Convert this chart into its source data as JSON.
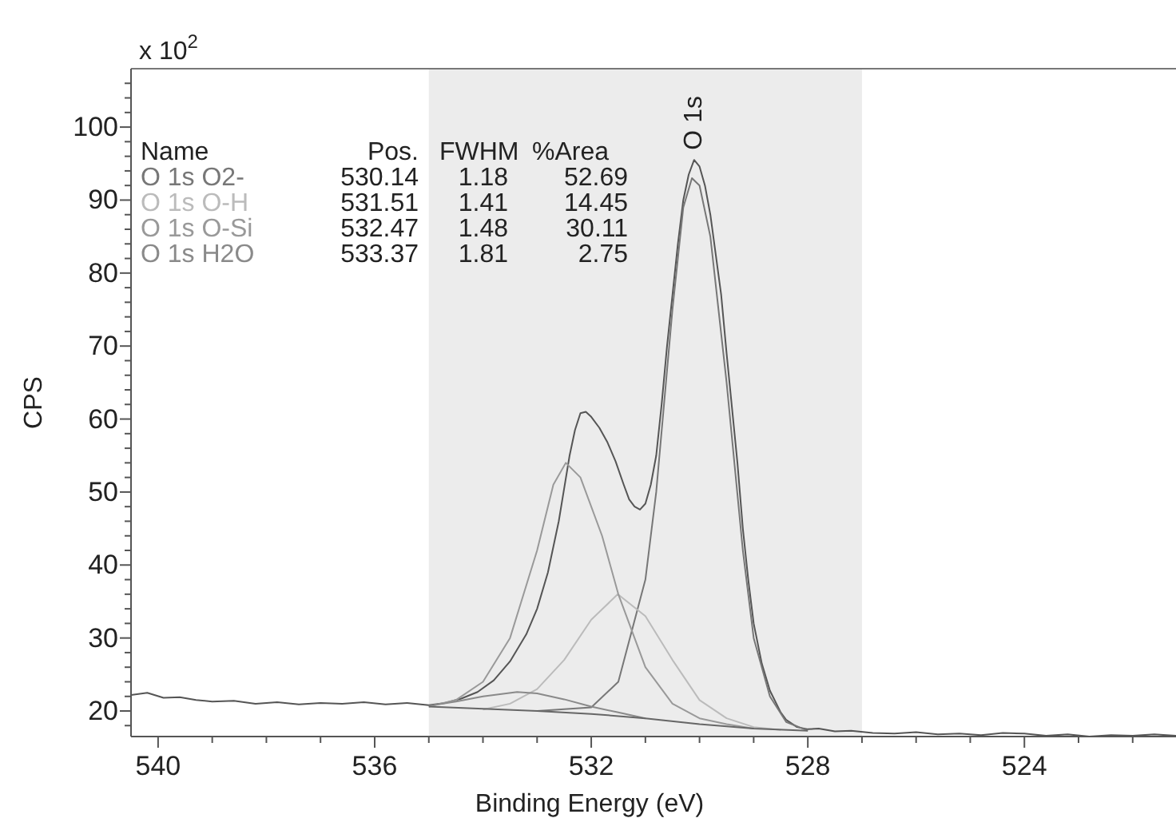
{
  "chart_data": {
    "type": "line",
    "xlabel": "Binding Energy (eV)",
    "ylabel": "CPS",
    "xlim": [
      540.5,
      521.2
    ],
    "ylim": [
      16.5,
      108
    ],
    "xticks": [
      540,
      {
        "value": 539,
        "label": null
      },
      {
        "value": 538,
        "label": null
      },
      {
        "value": 537,
        "label": null
      },
      536,
      {
        "value": 535,
        "label": null
      },
      {
        "value": 534,
        "label": null
      },
      {
        "value": 533,
        "label": null
      },
      532,
      {
        "value": 531,
        "label": null
      },
      {
        "value": 530,
        "label": null
      },
      {
        "value": 529,
        "label": null
      },
      528,
      {
        "value": 527,
        "label": null
      },
      {
        "value": 526,
        "label": null
      },
      {
        "value": 525,
        "label": null
      },
      524,
      {
        "value": 523,
        "label": null
      },
      {
        "value": 522,
        "label": null
      }
    ],
    "yticks": [
      {
        "value": 18,
        "label": null
      },
      20,
      {
        "value": 22,
        "label": null
      },
      {
        "value": 24,
        "label": null
      },
      {
        "value": 26,
        "label": null
      },
      {
        "value": 28,
        "label": null
      },
      30,
      {
        "value": 32,
        "label": null
      },
      {
        "value": 34,
        "label": null
      },
      {
        "value": 36,
        "label": null
      },
      {
        "value": 38,
        "label": null
      },
      40,
      {
        "value": 42,
        "label": null
      },
      {
        "value": 44,
        "label": null
      },
      {
        "value": 46,
        "label": null
      },
      {
        "value": 48,
        "label": null
      },
      50,
      {
        "value": 52,
        "label": null
      },
      {
        "value": 54,
        "label": null
      },
      {
        "value": 56,
        "label": null
      },
      {
        "value": 58,
        "label": null
      },
      60,
      {
        "value": 62,
        "label": null
      },
      {
        "value": 64,
        "label": null
      },
      {
        "value": 66,
        "label": null
      },
      {
        "value": 68,
        "label": null
      },
      70,
      {
        "value": 72,
        "label": null
      },
      {
        "value": 74,
        "label": null
      },
      {
        "value": 76,
        "label": null
      },
      {
        "value": 78,
        "label": null
      },
      80,
      {
        "value": 82,
        "label": null
      },
      {
        "value": 84,
        "label": null
      },
      {
        "value": 86,
        "label": null
      },
      {
        "value": 88,
        "label": null
      },
      90,
      {
        "value": 92,
        "label": null
      },
      {
        "value": 94,
        "label": null
      },
      {
        "value": 96,
        "label": null
      },
      {
        "value": 98,
        "label": null
      },
      100,
      {
        "value": 102,
        "label": null
      },
      {
        "value": 104,
        "label": null
      },
      {
        "value": 106,
        "label": null
      }
    ],
    "grid": false,
    "legend": "top left",
    "marker": "none",
    "line_style": "solid",
    "bands": [
      {
        "axis": "x",
        "from": 535,
        "to": 527,
        "color": "#ececec"
      }
    ],
    "annotations": [
      "x 10$^{2}$",
      {
        "text": "O 1s",
        "x": 530.14,
        "y": 96
      },
      "Name",
      "Pos.",
      "FWHM",
      "%Area",
      "530.14",
      "1.18",
      "52.69",
      "531.51",
      "1.41",
      "14.45",
      "532.47",
      "1.48",
      "30.11",
      "533.37",
      "1.81",
      "2.75"
    ],
    "series": [
      {
        "color": "#555555",
        "x": [
          540.5,
          540.2,
          539.9,
          539.6,
          539.3,
          539,
          538.6,
          538.2,
          537.8,
          537.4,
          537,
          536.6,
          536.2,
          535.8,
          535.4,
          535,
          534.7,
          534.4,
          534.1,
          533.8,
          533.5,
          533.2,
          533,
          532.8,
          532.6,
          532.5,
          532.4,
          532.3,
          532.2,
          532.1,
          532,
          531.85,
          531.7,
          531.55,
          531.4,
          531.3,
          531.2,
          531.1,
          531,
          530.9,
          530.8,
          530.7,
          530.6,
          530.5,
          530.4,
          530.3,
          530.2,
          530.1,
          530,
          529.9,
          529.8,
          529.6,
          529.5,
          529.3,
          529.2,
          529.1,
          529,
          528.85,
          528.7,
          528.5,
          528.4,
          528.2,
          528,
          527.8,
          527.5,
          527.2,
          526.8,
          526.4,
          526,
          525.6,
          525.2,
          524.8,
          524.4,
          524,
          523.6,
          523.2,
          522.8,
          522.4,
          522,
          521.6,
          521.2
        ],
        "values": [
          22.2,
          22.5,
          21.8,
          21.9,
          21.5,
          21.3,
          21.4,
          21,
          21.2,
          20.9,
          21.1,
          21,
          21.2,
          20.9,
          21.1,
          20.8,
          21.1,
          21.7,
          22.6,
          24.2,
          26.8,
          30.5,
          34,
          39,
          46,
          50.5,
          55,
          58.5,
          60.8,
          61,
          60.3,
          58.8,
          56.8,
          54.2,
          51,
          49,
          48,
          47.6,
          48.4,
          51,
          55,
          62,
          70,
          77,
          84,
          90,
          93.5,
          95.5,
          94.6,
          92,
          88,
          77,
          69,
          54,
          45,
          38,
          32,
          26.5,
          22.8,
          19.8,
          18.8,
          17.8,
          17.5,
          17.6,
          17.2,
          17.3,
          17,
          16.9,
          17.1,
          16.8,
          16.9,
          16.7,
          17,
          16.9,
          16.6,
          16.8,
          16.5,
          16.7,
          16.6,
          16.8,
          16.6
        ]
      },
      {
        "name": "O 1s O2-",
        "color": "#777777",
        "x": [
          533,
          532,
          531.5,
          531,
          530.8,
          530.5,
          530.3,
          530.14,
          530,
          529.8,
          529.5,
          529.2,
          529,
          528.7,
          528.4,
          528
        ],
        "values": [
          20,
          20.5,
          24,
          38,
          50,
          75,
          89,
          93,
          92,
          85,
          65,
          42,
          30,
          22,
          18.5,
          17.3
        ]
      },
      {
        "name": "O 1s O-H",
        "color": "#bbbbbb",
        "x": [
          534,
          533.5,
          533,
          532.5,
          532,
          531.51,
          531,
          530.5,
          530,
          529.5,
          529,
          528.5
        ],
        "values": [
          20.2,
          21,
          23,
          27,
          32.5,
          36,
          33,
          27,
          21.5,
          19,
          17.8,
          17.4
        ]
      },
      {
        "name": "O 1s O-Si",
        "color": "#999999",
        "x": [
          535,
          534.5,
          534,
          533.5,
          533,
          532.7,
          532.47,
          532.2,
          531.8,
          531.5,
          531,
          530.5,
          530,
          529.5,
          529
        ],
        "values": [
          20.6,
          21.5,
          24,
          30,
          42,
          51,
          54,
          52,
          44,
          36,
          26,
          21,
          19,
          18.2,
          17.6
        ]
      },
      {
        "name": "O 1s H2O",
        "color": "#8a8a8a",
        "x": [
          535,
          534.5,
          534,
          533.37,
          533,
          532.5,
          532,
          531.5,
          531
        ],
        "values": [
          20.7,
          21.3,
          22,
          22.6,
          22.4,
          21.6,
          20.6,
          19.8,
          19
        ]
      },
      {
        "color": "#666666",
        "x": [
          535,
          534,
          533,
          532,
          531,
          530,
          529,
          528
        ],
        "values": [
          20.6,
          20.3,
          20,
          19.6,
          19,
          18.2,
          17.6,
          17.3
        ]
      }
    ]
  }
}
